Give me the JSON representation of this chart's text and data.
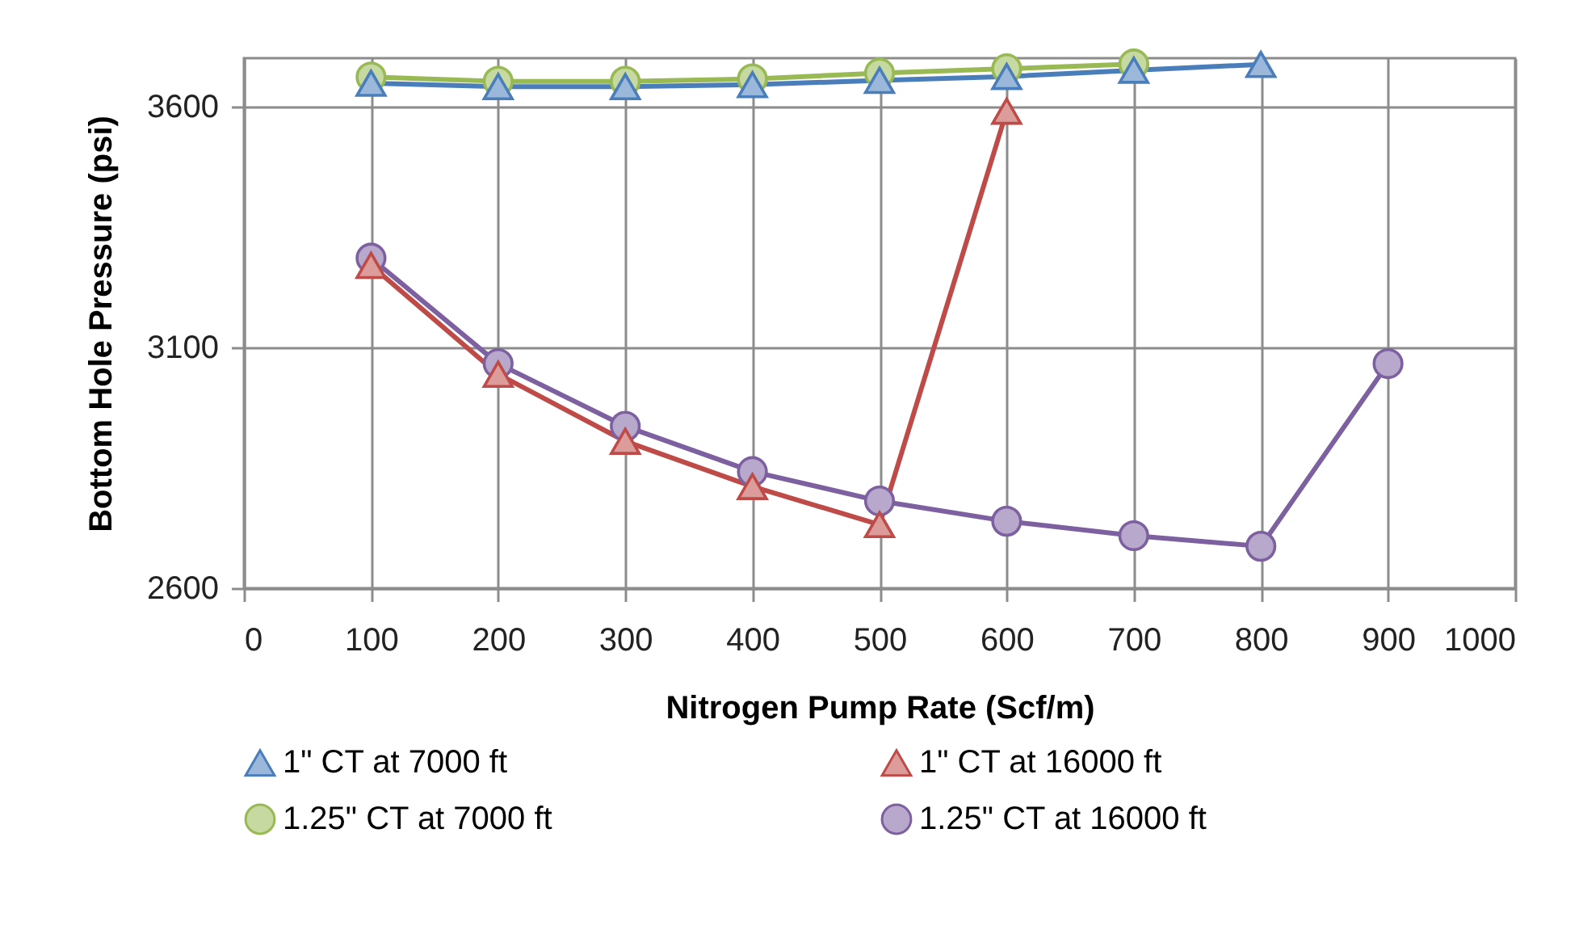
{
  "chart_data": {
    "type": "line",
    "xlabel": "Nitrogen Pump Rate (Scf/m)",
    "ylabel": "Bottom Hole Pressure (psi)",
    "xlim": [
      0,
      1000
    ],
    "xticks": [
      0,
      100,
      200,
      300,
      400,
      500,
      600,
      700,
      800,
      900,
      1000
    ],
    "ylim": [
      2600,
      3700
    ],
    "yticks": [
      2600,
      3100,
      3600
    ],
    "grid": true,
    "legend": "bottom",
    "series": [
      {
        "name": "1\" CT at 7000 ft",
        "color": "#4a7ebb",
        "marker": "triangle",
        "x": [
          100,
          200,
          300,
          400,
          500,
          600,
          700,
          800
        ],
        "values": [
          3648,
          3641,
          3641,
          3645,
          3654,
          3662,
          3675,
          3687
        ]
      },
      {
        "name": "1\" CT at 16000 ft",
        "color": "#be4b48",
        "marker": "triangle",
        "x": [
          100,
          200,
          300,
          400,
          500,
          600
        ],
        "values": [
          3270,
          3044,
          2905,
          2811,
          2732,
          3590
        ]
      },
      {
        "name": "1.25\" CT at 7000 ft",
        "color": "#98b954",
        "marker": "circle",
        "x": [
          100,
          200,
          300,
          400,
          500,
          600,
          700
        ],
        "values": [
          3661,
          3652,
          3652,
          3657,
          3669,
          3678,
          3688
        ]
      },
      {
        "name": "1.25\" CT at 16000 ft",
        "color": "#7d60a0",
        "marker": "circle",
        "x": [
          100,
          200,
          300,
          400,
          500,
          600,
          700,
          800,
          900
        ],
        "values": [
          3285,
          3066,
          2936,
          2842,
          2781,
          2739,
          2709,
          2687,
          3066
        ]
      }
    ]
  }
}
